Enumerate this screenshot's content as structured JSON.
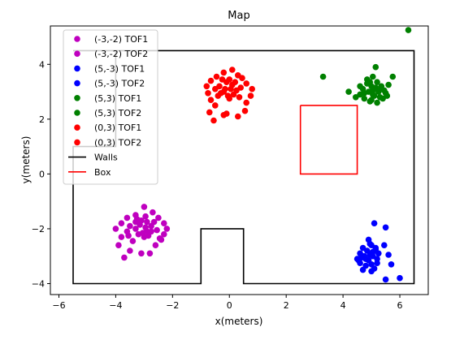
{
  "chart_data": {
    "type": "scatter",
    "title": "Map",
    "xlabel": "x(meters)",
    "ylabel": "y(meters)",
    "xlim": [
      -6.3,
      7.0
    ],
    "ylim": [
      -4.4,
      5.4
    ],
    "xticks": [
      -6,
      -4,
      -2,
      0,
      2,
      4,
      6
    ],
    "yticks": [
      -4,
      -2,
      0,
      2,
      4
    ],
    "grid": false,
    "legend_position": "top-left",
    "series": [
      {
        "name": "(-3,-2) TOF1",
        "color": "#bf00bf",
        "points": [
          [
            -3.8,
            -1.8
          ],
          [
            -3.6,
            -1.6
          ],
          [
            -3.3,
            -1.5
          ],
          [
            -3.0,
            -1.2
          ],
          [
            -2.7,
            -1.4
          ],
          [
            -2.5,
            -1.6
          ],
          [
            -2.3,
            -1.8
          ],
          [
            -2.2,
            -2.0
          ],
          [
            -2.3,
            -2.2
          ],
          [
            -2.4,
            -2.4
          ],
          [
            -2.6,
            -2.6
          ],
          [
            -2.8,
            -2.9
          ],
          [
            -3.1,
            -2.9
          ],
          [
            -3.5,
            -2.8
          ],
          [
            -3.9,
            -2.6
          ],
          [
            -3.8,
            -2.3
          ],
          [
            -3.6,
            -2.1
          ],
          [
            -3.5,
            -1.9
          ],
          [
            -3.3,
            -1.75
          ],
          [
            -3.1,
            -1.7
          ],
          [
            -2.9,
            -1.75
          ],
          [
            -2.75,
            -1.9
          ],
          [
            -2.75,
            -2.1
          ],
          [
            -2.85,
            -2.25
          ],
          [
            -3.0,
            -2.3
          ],
          [
            -3.2,
            -2.2
          ],
          [
            -3.3,
            -2.0
          ],
          [
            -3.15,
            -1.85
          ],
          [
            -2.95,
            -1.95
          ],
          [
            -2.9,
            -2.1
          ],
          [
            -3.7,
            -3.05
          ],
          [
            -4.0,
            -2.0
          ]
        ]
      },
      {
        "name": "(-3,-2) TOF2",
        "color": "#bf00bf",
        "points": [
          [
            -3.25,
            -1.65
          ],
          [
            -2.55,
            -2.05
          ],
          [
            -3.4,
            -2.45
          ],
          [
            -2.95,
            -1.55
          ],
          [
            -3.05,
            -2.15
          ],
          [
            -2.65,
            -1.75
          ],
          [
            -3.55,
            -2.25
          ],
          [
            -2.45,
            -2.35
          ]
        ]
      },
      {
        "name": "(5,-3) TOF1",
        "color": "#0000ff",
        "points": [
          [
            5.1,
            -1.8
          ],
          [
            5.5,
            -1.95
          ],
          [
            4.9,
            -2.4
          ],
          [
            4.7,
            -2.7
          ],
          [
            4.6,
            -2.9
          ],
          [
            4.5,
            -3.1
          ],
          [
            4.6,
            -3.25
          ],
          [
            4.8,
            -3.35
          ],
          [
            5.0,
            -3.3
          ],
          [
            5.2,
            -3.1
          ],
          [
            5.25,
            -2.9
          ],
          [
            5.15,
            -2.7
          ],
          [
            5.0,
            -2.6
          ],
          [
            4.85,
            -2.8
          ],
          [
            4.75,
            -3.0
          ],
          [
            4.9,
            -3.15
          ],
          [
            5.05,
            -3.0
          ],
          [
            4.95,
            -2.95
          ],
          [
            5.1,
            -3.45
          ],
          [
            5.6,
            -2.95
          ],
          [
            5.7,
            -3.3
          ],
          [
            5.5,
            -3.85
          ],
          [
            6.0,
            -3.8
          ],
          [
            5.45,
            -2.6
          ],
          [
            4.7,
            -3.5
          ]
        ]
      },
      {
        "name": "(5,-3) TOF2",
        "color": "#0000ff",
        "points": [
          [
            4.95,
            -2.55
          ],
          [
            4.65,
            -3.05
          ],
          [
            5.2,
            -3.25
          ],
          [
            4.8,
            -3.1
          ],
          [
            5.05,
            -2.85
          ],
          [
            4.55,
            -3.15
          ],
          [
            5.0,
            -3.55
          ],
          [
            5.15,
            -2.75
          ]
        ]
      },
      {
        "name": "(5,3) TOF1",
        "color": "#008000",
        "points": [
          [
            6.3,
            5.25
          ],
          [
            3.3,
            3.55
          ],
          [
            5.15,
            3.9
          ],
          [
            5.05,
            3.55
          ],
          [
            4.85,
            3.3
          ],
          [
            4.7,
            3.1
          ],
          [
            4.6,
            2.9
          ],
          [
            4.75,
            2.75
          ],
          [
            4.95,
            2.65
          ],
          [
            5.2,
            2.6
          ],
          [
            5.4,
            2.75
          ],
          [
            5.5,
            2.95
          ],
          [
            5.35,
            3.2
          ],
          [
            5.2,
            3.35
          ],
          [
            5.0,
            3.2
          ],
          [
            4.9,
            3.0
          ],
          [
            5.05,
            2.9
          ],
          [
            5.25,
            3.0
          ],
          [
            5.1,
            2.85
          ],
          [
            4.85,
            3.45
          ],
          [
            5.35,
            3.1
          ],
          [
            5.75,
            3.55
          ],
          [
            5.6,
            3.25
          ],
          [
            4.2,
            3.0
          ],
          [
            4.45,
            2.8
          ],
          [
            5.55,
            2.85
          ]
        ]
      },
      {
        "name": "(5,3) TOF2",
        "color": "#008000",
        "points": [
          [
            4.95,
            3.35
          ],
          [
            5.15,
            3.15
          ],
          [
            4.75,
            2.95
          ],
          [
            5.3,
            2.8
          ],
          [
            5.05,
            3.05
          ],
          [
            4.6,
            3.2
          ],
          [
            5.45,
            3.05
          ],
          [
            5.0,
            2.7
          ]
        ]
      },
      {
        "name": "(0,3) TOF1",
        "color": "#ff0000",
        "points": [
          [
            0.1,
            3.8
          ],
          [
            -0.2,
            3.7
          ],
          [
            -0.45,
            3.55
          ],
          [
            -0.65,
            3.4
          ],
          [
            -0.8,
            3.2
          ],
          [
            -0.75,
            2.95
          ],
          [
            -0.65,
            2.7
          ],
          [
            -0.5,
            2.5
          ],
          [
            -0.7,
            2.25
          ],
          [
            -0.55,
            1.95
          ],
          [
            -0.2,
            2.15
          ],
          [
            0.3,
            2.1
          ],
          [
            0.55,
            2.3
          ],
          [
            0.6,
            2.6
          ],
          [
            0.75,
            2.85
          ],
          [
            0.8,
            3.1
          ],
          [
            0.6,
            3.3
          ],
          [
            0.45,
            3.5
          ],
          [
            0.3,
            3.6
          ],
          [
            -0.35,
            3.2
          ],
          [
            -0.2,
            3.0
          ],
          [
            -0.05,
            2.85
          ],
          [
            0.15,
            2.9
          ],
          [
            0.25,
            3.05
          ],
          [
            0.1,
            3.25
          ],
          [
            -0.1,
            3.35
          ],
          [
            -0.3,
            2.95
          ],
          [
            0.05,
            3.1
          ],
          [
            -0.1,
            2.2
          ],
          [
            0.0,
            2.75
          ]
        ]
      },
      {
        "name": "(0,3) TOF2",
        "color": "#ff0000",
        "points": [
          [
            -0.25,
            3.45
          ],
          [
            0.2,
            3.35
          ],
          [
            -0.4,
            2.85
          ],
          [
            0.35,
            2.8
          ],
          [
            -0.15,
            3.1
          ],
          [
            0.0,
            3.45
          ],
          [
            -0.5,
            3.1
          ],
          [
            0.4,
            3.15
          ]
        ]
      }
    ],
    "lines": [
      {
        "name": "Walls",
        "color": "#000000",
        "points": [
          [
            -5.5,
            4.5
          ],
          [
            6.5,
            4.5
          ],
          [
            6.5,
            -4.0
          ],
          [
            0.5,
            -4.0
          ],
          [
            0.5,
            -2.0
          ],
          [
            -1.0,
            -2.0
          ],
          [
            -1.0,
            -4.0
          ],
          [
            -5.5,
            -4.0
          ],
          [
            -5.5,
            1.0
          ],
          [
            -4.0,
            1.0
          ],
          [
            -4.0,
            4.5
          ],
          [
            -5.5,
            4.5
          ]
        ]
      },
      {
        "name": "Box",
        "color": "#ff0000",
        "points": [
          [
            2.5,
            2.5
          ],
          [
            4.5,
            2.5
          ],
          [
            4.5,
            0.0
          ],
          [
            2.5,
            0.0
          ],
          [
            2.5,
            2.5
          ]
        ]
      }
    ]
  }
}
